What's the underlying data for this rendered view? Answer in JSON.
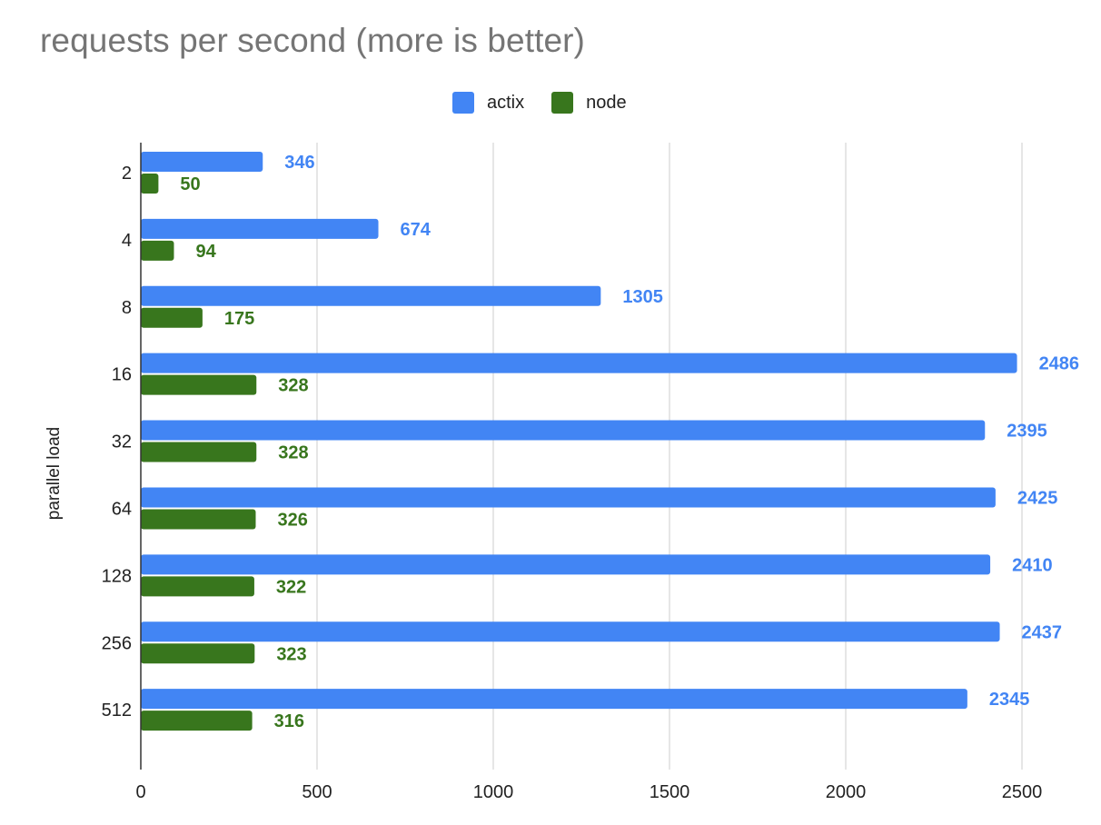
{
  "chart_data": {
    "type": "bar",
    "orientation": "horizontal",
    "title": "requests per second (more is better)",
    "xlabel": "",
    "ylabel": "parallel load",
    "categories": [
      "2",
      "4",
      "8",
      "16",
      "32",
      "64",
      "128",
      "256",
      "512"
    ],
    "series": [
      {
        "name": "actix",
        "color": "#4285f4",
        "values": [
          346,
          674,
          1305,
          2486,
          2395,
          2425,
          2410,
          2437,
          2345
        ]
      },
      {
        "name": "node",
        "color": "#38761d",
        "values": [
          50,
          94,
          175,
          328,
          328,
          326,
          322,
          323,
          316
        ]
      }
    ],
    "xlim": [
      0,
      2500
    ],
    "xticks": [
      0,
      500,
      1000,
      1500,
      2000,
      2500
    ],
    "grid": "vertical",
    "legend": "top-center",
    "data_labels": true
  }
}
